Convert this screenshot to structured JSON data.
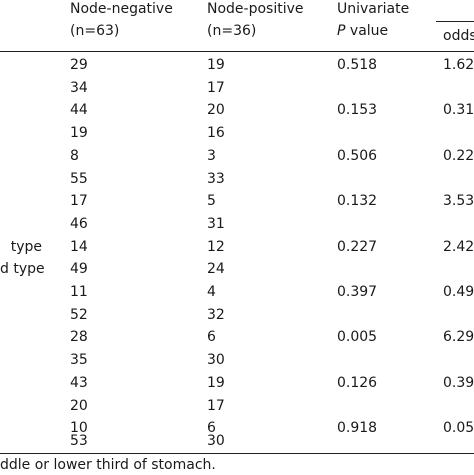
{
  "header": {
    "neg_title": "Node-negative",
    "neg_n": "(n=63)",
    "pos_title": "Node-positive",
    "pos_n": "(n=36)",
    "p_title_1": "Univariate",
    "p_title_2_italic": "P",
    "p_title_2_rest": " value",
    "or_title": "odds"
  },
  "rows": [
    {
      "label": "",
      "neg": "29",
      "pos": "19",
      "p": "0.518",
      "or": "1.62"
    },
    {
      "label": "",
      "neg": "34",
      "pos": "17",
      "p": "",
      "or": ""
    },
    {
      "label": "",
      "neg": "44",
      "pos": "20",
      "p": "0.153",
      "or": "0.31"
    },
    {
      "label": "",
      "neg": "19",
      "pos": "16",
      "p": "",
      "or": ""
    },
    {
      "label": "",
      "neg": "8",
      "pos": "3",
      "p": "0.506",
      "or": "0.22"
    },
    {
      "label": "",
      "neg": "55",
      "pos": "33",
      "p": "",
      "or": ""
    },
    {
      "label": "",
      "neg": "17",
      "pos": "5",
      "p": "0.132",
      "or": "3.53"
    },
    {
      "label": "",
      "neg": "46",
      "pos": "31",
      "p": "",
      "or": ""
    },
    {
      "label": "type",
      "neg": "14",
      "pos": "12",
      "p": "0.227",
      "or": "2.42"
    },
    {
      "label": "d type",
      "neg": "49",
      "pos": "24",
      "p": "",
      "or": ""
    },
    {
      "label": "",
      "neg": "11",
      "pos": "4",
      "p": "0.397",
      "or": "0.49"
    },
    {
      "label": "",
      "neg": "52",
      "pos": "32",
      "p": "",
      "or": ""
    },
    {
      "label": "",
      "neg": "28",
      "pos": "6",
      "p": "0.005",
      "or": "6.29"
    },
    {
      "label": "",
      "neg": "35",
      "pos": "30",
      "p": "",
      "or": ""
    },
    {
      "label": "",
      "neg": "43",
      "pos": "19",
      "p": "0.126",
      "or": "0.39"
    },
    {
      "label": "",
      "neg": "20",
      "pos": "17",
      "p": "",
      "or": ""
    },
    {
      "label": "",
      "neg": "10",
      "pos": "6",
      "p": "0.918",
      "or": "0.05"
    },
    {
      "label": "",
      "neg": "53",
      "pos": "30",
      "p": "",
      "or": ""
    }
  ],
  "footnote": "ddle or lower third of stomach."
}
